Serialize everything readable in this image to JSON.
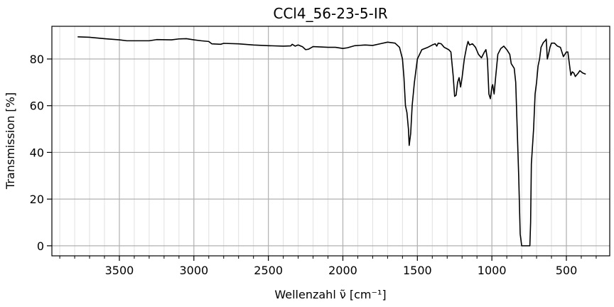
{
  "chart_data": {
    "type": "line",
    "title": "CCl4_56-23-5-IR",
    "xlabel": "Wellenzahl ν̃ [cm⁻¹]",
    "ylabel": "Transmission [%]",
    "xlim": [
      3953,
      209
    ],
    "ylim": [
      -4.3,
      94
    ],
    "xticks": [
      3500,
      3000,
      2500,
      2000,
      1500,
      1000,
      500
    ],
    "xminorticks": [
      3900,
      3800,
      3700,
      3600,
      3400,
      3300,
      3200,
      3100,
      2900,
      2800,
      2700,
      2600,
      2400,
      2300,
      2200,
      2100,
      1900,
      1800,
      1700,
      1600,
      1400,
      1300,
      1200,
      1100,
      900,
      800,
      700,
      600,
      400,
      300
    ],
    "yticks": [
      0,
      20,
      40,
      60,
      80
    ],
    "grid": true,
    "series": [
      {
        "name": "CCl4",
        "color": "#000000",
        "x": [
          3780,
          3700,
          3600,
          3500,
          3450,
          3300,
          3250,
          3150,
          3100,
          3050,
          3000,
          2950,
          2900,
          2880,
          2820,
          2800,
          2700,
          2600,
          2500,
          2400,
          2350,
          2340,
          2320,
          2300,
          2270,
          2250,
          2230,
          2200,
          2100,
          2050,
          2000,
          1970,
          1920,
          1850,
          1800,
          1750,
          1700,
          1650,
          1620,
          1600,
          1590,
          1580,
          1570,
          1560,
          1555,
          1545,
          1535,
          1520,
          1500,
          1470,
          1430,
          1400,
          1380,
          1370,
          1360,
          1340,
          1320,
          1290,
          1275,
          1260,
          1250,
          1240,
          1230,
          1220,
          1210,
          1200,
          1185,
          1170,
          1160,
          1150,
          1130,
          1110,
          1090,
          1070,
          1050,
          1040,
          1030,
          1020,
          1010,
          1000,
          995,
          985,
          975,
          960,
          940,
          930,
          920,
          900,
          880,
          870,
          850,
          840,
          830,
          820,
          810,
          800,
          780,
          760,
          745,
          740,
          735,
          720,
          710,
          700,
          690,
          680,
          670,
          655,
          640,
          635,
          628,
          620,
          610,
          600,
          580,
          560,
          540,
          530,
          520,
          500,
          490,
          480,
          470,
          460,
          450,
          440,
          420,
          410,
          390,
          370
        ],
        "values": [
          89.5,
          89.3,
          88.7,
          88.2,
          87.8,
          87.8,
          88.3,
          88.2,
          88.6,
          88.7,
          88.2,
          87.8,
          87.5,
          86.5,
          86.3,
          86.7,
          86.5,
          86.0,
          85.7,
          85.5,
          85.6,
          86.3,
          85.5,
          86.0,
          85.2,
          84.0,
          84.2,
          85.3,
          85.0,
          85.0,
          84.5,
          84.8,
          85.7,
          86.0,
          85.8,
          86.5,
          87.2,
          86.8,
          85.0,
          80.0,
          72,
          60,
          57,
          50,
          43,
          48,
          60,
          70,
          80,
          84,
          85,
          86,
          86.5,
          85.5,
          86.8,
          86.5,
          85,
          84,
          83,
          73,
          64,
          64.5,
          70,
          72,
          68,
          72,
          80,
          85,
          87.5,
          86,
          86.5,
          85,
          82,
          80.5,
          83,
          84,
          80,
          65,
          63,
          68,
          69,
          65,
          72,
          82,
          84.5,
          85,
          85.5,
          84,
          82,
          78,
          76,
          70,
          50,
          30,
          5,
          0,
          0,
          0,
          0,
          10,
          35,
          50,
          65,
          70,
          77,
          80,
          85,
          87,
          88,
          88.5,
          80,
          82,
          85,
          86.8,
          86.8,
          85.5,
          85,
          83,
          81,
          83,
          83,
          78,
          73,
          74.5,
          74,
          72.5,
          74,
          75,
          74,
          73.5
        ]
      }
    ]
  }
}
